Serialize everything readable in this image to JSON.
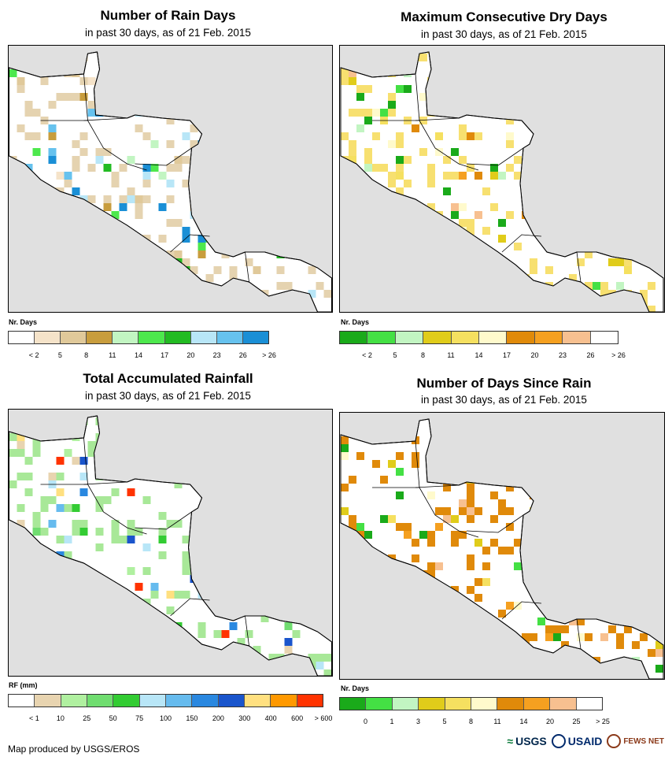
{
  "panels": [
    {
      "title": "Number of Rain Days",
      "subtitle": "in past 30 days, as of 21 Feb. 2015",
      "legend_title": "Nr. Days",
      "legend_colors": [
        "#ffffff",
        "#f5e3c9",
        "#e0c99a",
        "#c89d3d",
        "#c2f5c2",
        "#4de84d",
        "#22bb22",
        "#b8e6f7",
        "#66c2ee",
        "#1a8fd6"
      ],
      "ticks": [
        "< 2",
        "5",
        "8",
        "11",
        "14",
        "17",
        "20",
        "23",
        "26",
        "> 26"
      ],
      "dominant": "#e5d3b0"
    },
    {
      "title": "Maximum Consecutive Dry Days",
      "subtitle": "in past 30 days, as of 21 Feb. 2015",
      "legend_title": "Nr. Days",
      "legend_colors": [
        "#1aaa1a",
        "#44e044",
        "#c2f5c2",
        "#e0cc1a",
        "#f5e060",
        "#fffacc",
        "#e08a0a",
        "#f5a020",
        "#f7c090",
        "#ffffff"
      ],
      "ticks": [
        "< 2",
        "5",
        "8",
        "11",
        "14",
        "17",
        "20",
        "23",
        "26",
        "> 26"
      ],
      "dominant": "#f7e070"
    },
    {
      "title": "Total Accumulated Rainfall",
      "subtitle": "in past 30 days, as of 21 Feb. 2015",
      "legend_title": "RF (mm)",
      "legend_colors": [
        "#ffffff",
        "#e8d4b0",
        "#b0f0a0",
        "#70dd70",
        "#33cc33",
        "#b8e6f7",
        "#66bbee",
        "#2a88e0",
        "#1a55cc",
        "#ffe080",
        "#ff9900",
        "#ff3300"
      ],
      "ticks": [
        "< 1",
        "10",
        "25",
        "50",
        "75",
        "100",
        "150",
        "200",
        "300",
        "400",
        "600",
        "> 600"
      ],
      "dominant": "#a8e898"
    },
    {
      "title": "Number of Days Since Rain",
      "subtitle": "in past 30 days, as of 21 Feb. 2015",
      "legend_title": "Nr. Days",
      "legend_colors": [
        "#1aaa1a",
        "#44e044",
        "#c2f5c2",
        "#e0cc1a",
        "#f5e060",
        "#fffacc",
        "#e08a0a",
        "#f5a020",
        "#f7c090",
        "#ffffff"
      ],
      "ticks": [
        "0",
        "1",
        "3",
        "5",
        "8",
        "11",
        "14",
        "20",
        "25",
        "> 25"
      ],
      "dominant": "#e08a0a"
    }
  ],
  "footer": "Map produced by USGS/EROS",
  "logos": {
    "usgs": "USGS",
    "usaid": "USAID",
    "fews": "FEWS NET"
  }
}
